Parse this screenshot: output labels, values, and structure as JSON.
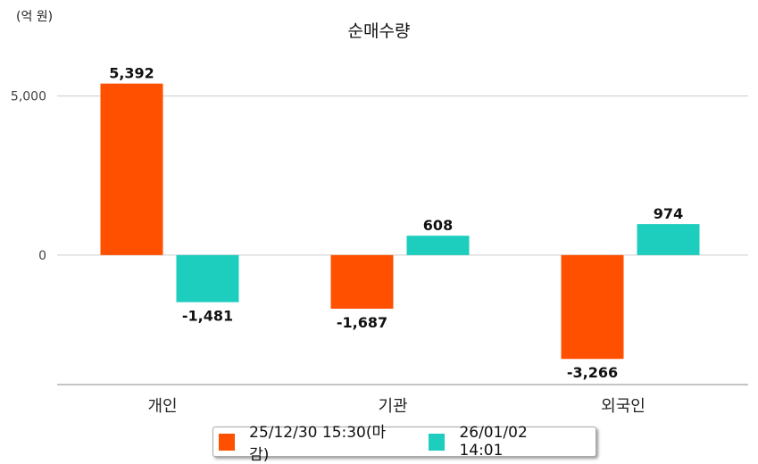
{
  "chart_data": {
    "type": "bar",
    "title": "순매수량",
    "unit_label": "(억 원)",
    "xlabel": "",
    "ylabel": "",
    "categories": [
      "개인",
      "기관",
      "외국인"
    ],
    "series": [
      {
        "name": "25/12/30 15:30(마감)",
        "color": "#ff5000",
        "values": [
          5392,
          -1687,
          -3266
        ],
        "labels": [
          "5,392",
          "-1,687",
          "-3,266"
        ]
      },
      {
        "name": "26/01/02 14:01",
        "color": "#1dcdbd",
        "values": [
          -1481,
          608,
          974
        ],
        "labels": [
          "-1,481",
          "608",
          "974"
        ]
      }
    ],
    "ylim": [
      -4073,
      6000
    ],
    "yticks": [
      0,
      5000
    ],
    "ytick_labels": [
      "0",
      "5,000"
    ],
    "grid": true,
    "legend_position": "bottom"
  }
}
